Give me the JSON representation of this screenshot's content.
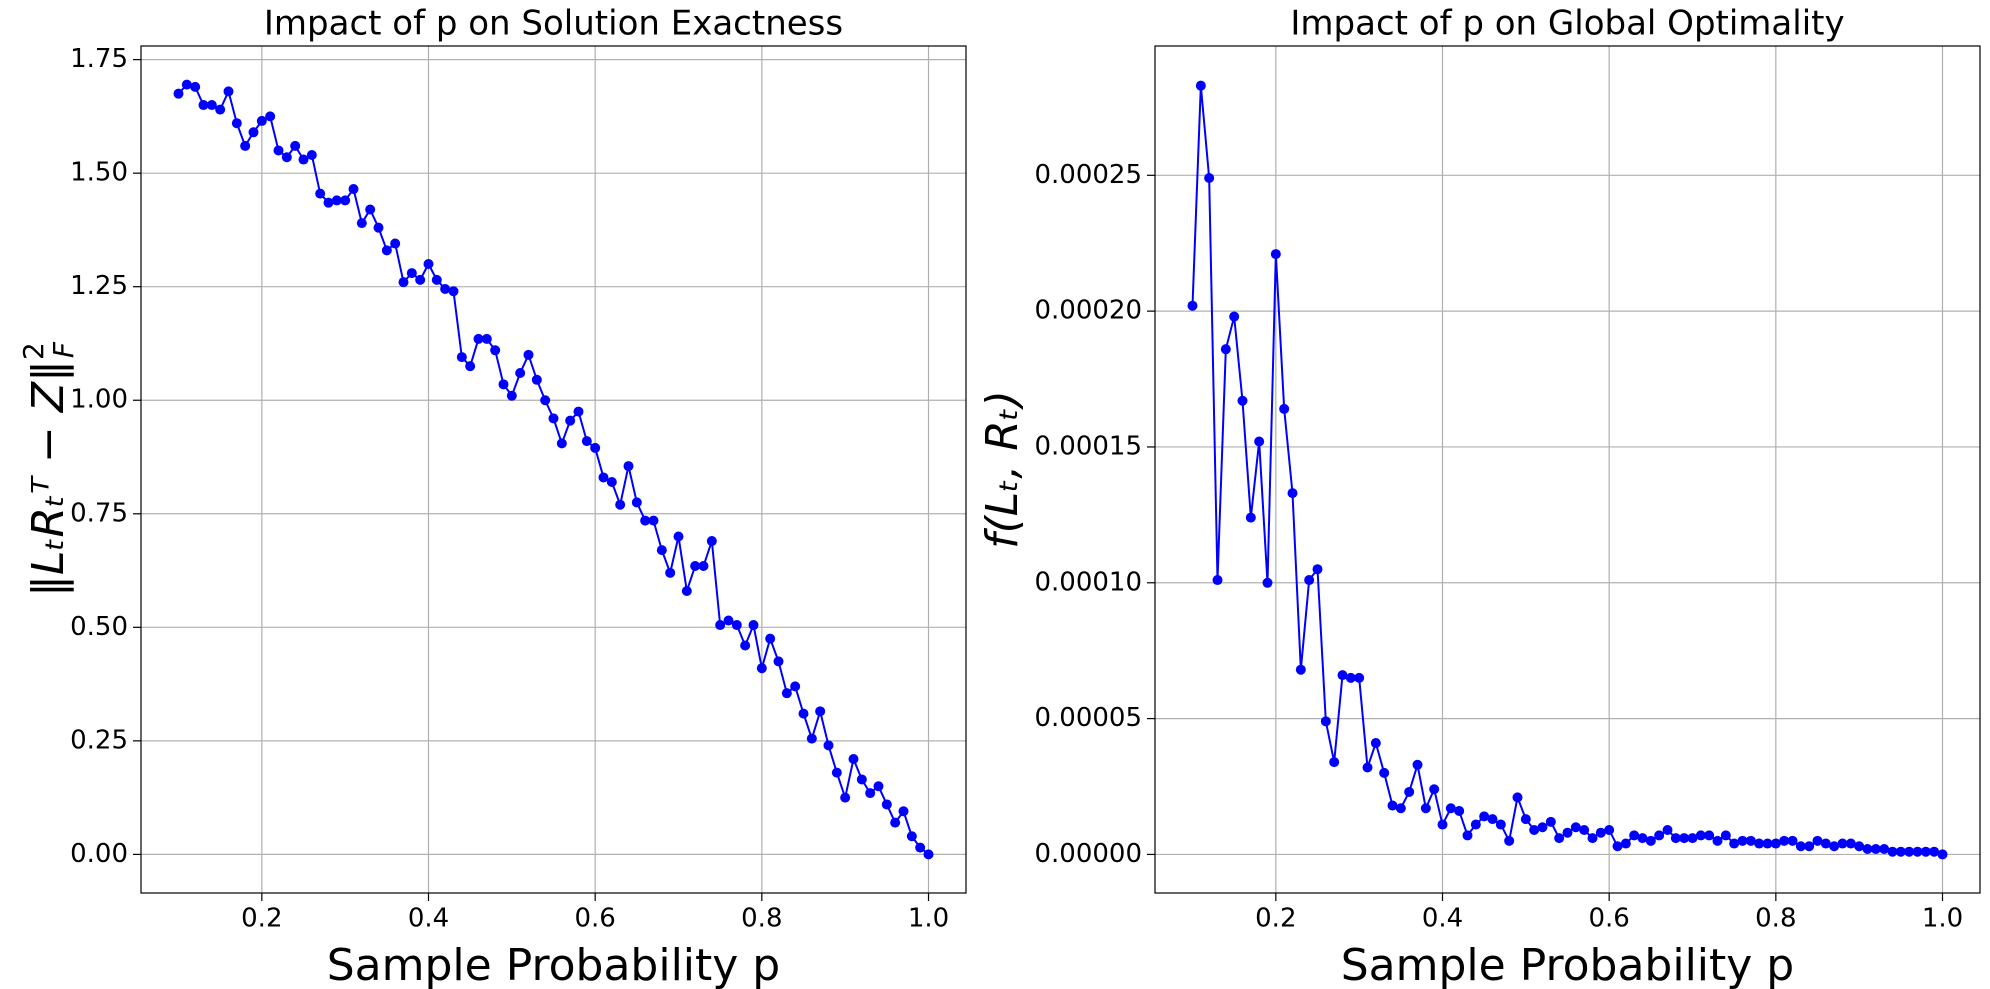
{
  "chart_data": [
    {
      "type": "line",
      "title": "Impact of p on Solution Exactness",
      "xlabel": "Sample Probability p",
      "ylabel": {
        "main": "‖LₜRₜᵀ − Z‖",
        "sup": "2",
        "sub": "F"
      },
      "x": [
        0.1,
        0.11,
        0.12,
        0.13,
        0.14,
        0.15,
        0.16,
        0.17,
        0.18,
        0.19,
        0.2,
        0.21,
        0.22,
        0.23,
        0.24,
        0.25,
        0.26,
        0.27,
        0.28,
        0.29,
        0.3,
        0.31,
        0.32,
        0.33,
        0.34,
        0.35,
        0.36,
        0.37,
        0.38,
        0.39,
        0.4,
        0.41,
        0.42,
        0.43,
        0.44,
        0.45,
        0.46,
        0.47,
        0.48,
        0.49,
        0.5,
        0.51,
        0.52,
        0.53,
        0.54,
        0.55,
        0.56,
        0.57,
        0.58,
        0.59,
        0.6,
        0.61,
        0.62,
        0.63,
        0.64,
        0.65,
        0.66,
        0.67,
        0.68,
        0.69,
        0.7,
        0.71,
        0.72,
        0.73,
        0.74,
        0.75,
        0.76,
        0.77,
        0.78,
        0.79,
        0.8,
        0.81,
        0.82,
        0.83,
        0.84,
        0.85,
        0.86,
        0.87,
        0.88,
        0.89,
        0.9,
        0.91,
        0.92,
        0.93,
        0.94,
        0.95,
        0.96,
        0.97,
        0.98,
        0.99,
        1.0
      ],
      "series": [
        {
          "color": "#0000ff",
          "values": [
            1.675,
            1.695,
            1.69,
            1.65,
            1.65,
            1.64,
            1.68,
            1.61,
            1.56,
            1.59,
            1.615,
            1.625,
            1.55,
            1.535,
            1.56,
            1.53,
            1.54,
            1.455,
            1.435,
            1.44,
            1.44,
            1.465,
            1.39,
            1.42,
            1.38,
            1.33,
            1.345,
            1.26,
            1.28,
            1.265,
            1.3,
            1.265,
            1.245,
            1.24,
            1.095,
            1.075,
            1.135,
            1.135,
            1.11,
            1.035,
            1.01,
            1.06,
            1.1,
            1.045,
            1.0,
            0.96,
            0.905,
            0.955,
            0.975,
            0.91,
            0.895,
            0.83,
            0.82,
            0.77,
            0.855,
            0.775,
            0.735,
            0.735,
            0.67,
            0.62,
            0.7,
            0.58,
            0.635,
            0.635,
            0.69,
            0.505,
            0.515,
            0.505,
            0.46,
            0.505,
            0.41,
            0.475,
            0.425,
            0.355,
            0.37,
            0.31,
            0.255,
            0.315,
            0.24,
            0.18,
            0.125,
            0.21,
            0.165,
            0.135,
            0.15,
            0.11,
            0.07,
            0.095,
            0.04,
            0.015,
            0.0
          ]
        }
      ],
      "xlim": [
        0.055,
        1.045
      ],
      "ylim": [
        -0.085,
        1.78
      ],
      "xticks": [
        0.2,
        0.4,
        0.6,
        0.8,
        {
          "value": 1.0,
          "label": "1.0"
        }
      ],
      "yticks": [
        {
          "value": 0,
          "label": "0.00"
        },
        0.25,
        {
          "value": 0.5,
          "label": "0.50"
        },
        0.75,
        {
          "value": 1.0,
          "label": "1.00"
        },
        1.25,
        {
          "value": 1.5,
          "label": "1.50"
        },
        1.75
      ],
      "grid": true
    },
    {
      "type": "line",
      "title": "Impact of p on Global Optimality",
      "xlabel": "Sample Probability p",
      "ylabel": {
        "main": "f(Lₜ, Rₜ)"
      },
      "x": [
        0.1,
        0.11,
        0.12,
        0.13,
        0.14,
        0.15,
        0.16,
        0.17,
        0.18,
        0.19,
        0.2,
        0.21,
        0.22,
        0.23,
        0.24,
        0.25,
        0.26,
        0.27,
        0.28,
        0.29,
        0.3,
        0.31,
        0.32,
        0.33,
        0.34,
        0.35,
        0.36,
        0.37,
        0.38,
        0.39,
        0.4,
        0.41,
        0.42,
        0.43,
        0.44,
        0.45,
        0.46,
        0.47,
        0.48,
        0.49,
        0.5,
        0.51,
        0.52,
        0.53,
        0.54,
        0.55,
        0.56,
        0.57,
        0.58,
        0.59,
        0.6,
        0.61,
        0.62,
        0.63,
        0.64,
        0.65,
        0.66,
        0.67,
        0.68,
        0.69,
        0.7,
        0.71,
        0.72,
        0.73,
        0.74,
        0.75,
        0.76,
        0.77,
        0.78,
        0.79,
        0.8,
        0.81,
        0.82,
        0.83,
        0.84,
        0.85,
        0.86,
        0.87,
        0.88,
        0.89,
        0.9,
        0.91,
        0.92,
        0.93,
        0.94,
        0.95,
        0.96,
        0.97,
        0.98,
        0.99,
        1.0
      ],
      "series": [
        {
          "color": "#0000ff",
          "values": [
            0.000202,
            0.000283,
            0.000249,
            0.000101,
            0.000186,
            0.000198,
            0.000167,
            0.000124,
            0.000152,
            0.0001,
            0.000221,
            0.000164,
            0.000133,
            6.8e-05,
            0.000101,
            0.000105,
            4.9e-05,
            3.4e-05,
            6.6e-05,
            6.5e-05,
            6.5e-05,
            3.2e-05,
            4.1e-05,
            3e-05,
            1.8e-05,
            1.7e-05,
            2.3e-05,
            3.3e-05,
            1.7e-05,
            2.4e-05,
            1.1e-05,
            1.7e-05,
            1.6e-05,
            7e-06,
            1.1e-05,
            1.4e-05,
            1.3e-05,
            1.1e-05,
            5e-06,
            2.1e-05,
            1.3e-05,
            9e-06,
            1e-05,
            1.2e-05,
            6e-06,
            8e-06,
            1e-05,
            9e-06,
            6e-06,
            8e-06,
            9e-06,
            3e-06,
            4e-06,
            7e-06,
            6e-06,
            5e-06,
            7e-06,
            9e-06,
            6e-06,
            6e-06,
            6e-06,
            7e-06,
            7e-06,
            5e-06,
            7e-06,
            4e-06,
            5e-06,
            5e-06,
            4e-06,
            4e-06,
            4e-06,
            5e-06,
            5e-06,
            3e-06,
            3e-06,
            5e-06,
            4e-06,
            3e-06,
            4e-06,
            4e-06,
            3e-06,
            2e-06,
            2e-06,
            2e-06,
            1e-06,
            1e-06,
            1e-06,
            1e-06,
            1e-06,
            1e-06,
            0.0
          ]
        }
      ],
      "xlim": [
        0.055,
        1.045
      ],
      "ylim": [
        -1.42e-05,
        0.0002976
      ],
      "xticks": [
        0.2,
        0.4,
        0.6,
        0.8,
        {
          "value": 1.0,
          "label": "1.0"
        }
      ],
      "yticks": [
        {
          "value": 0,
          "label": "0.00000"
        },
        {
          "value": 5e-05,
          "label": "0.00005"
        },
        {
          "value": 0.0001,
          "label": "0.00010"
        },
        {
          "value": 0.00015,
          "label": "0.00015"
        },
        {
          "value": 0.0002,
          "label": "0.00020"
        },
        {
          "value": 0.00025,
          "label": "0.00025"
        }
      ],
      "grid": true
    }
  ]
}
